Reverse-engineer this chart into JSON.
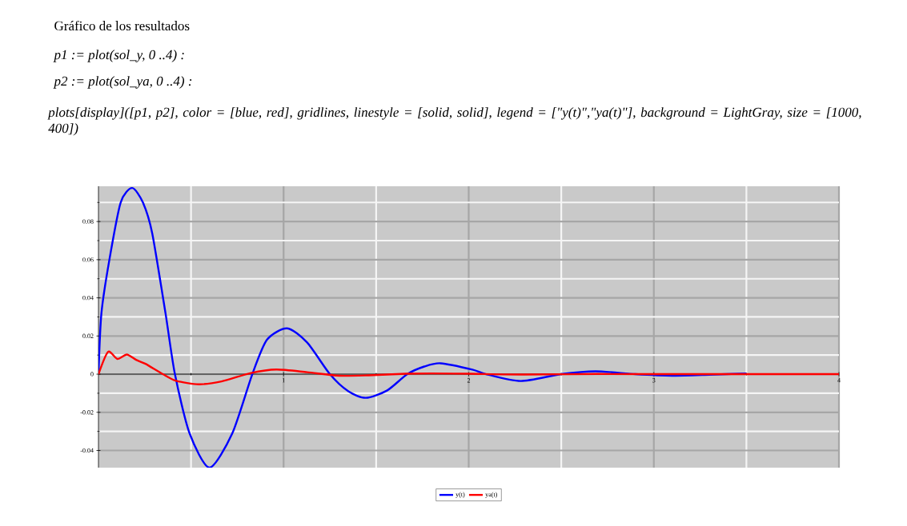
{
  "chart_data": {
    "type": "line",
    "title": "Gráfico de los resultados",
    "annotations": [
      "p1 := plot(sol_y, 0 ..4) :",
      "p2 := plot(sol_ya, 0 ..4) :",
      "plots[display]([p1, p2], color = [blue, red], gridlines, linestyle = [solid, solid], legend = [\"y(t)\",\"ya(t)\"], background = LightGray, size = [1000, 400])"
    ],
    "xlim": [
      0,
      4
    ],
    "ylim": [
      -0.049,
      0.0985
    ],
    "xticks": [
      {
        "value": 0.5,
        "label": null
      },
      1,
      {
        "value": 1.5,
        "label": null
      },
      2,
      {
        "value": 2.5,
        "label": null
      },
      3,
      {
        "value": 3.5,
        "label": null
      },
      4
    ],
    "yticks": [
      {
        "value": -0.04,
        "label": "-0.04"
      },
      {
        "value": -0.03,
        "label": null
      },
      {
        "value": -0.02,
        "label": "-0.02"
      },
      {
        "value": -0.01,
        "label": null
      },
      {
        "value": 0,
        "label": "0"
      },
      {
        "value": 0.01,
        "label": null
      },
      {
        "value": 0.02,
        "label": "0.02"
      },
      {
        "value": 0.03,
        "label": null
      },
      {
        "value": 0.04,
        "label": "0.04"
      },
      {
        "value": 0.05,
        "label": null
      },
      {
        "value": 0.06,
        "label": "0.06"
      },
      {
        "value": 0.07,
        "label": null
      },
      {
        "value": 0.08,
        "label": "0.08"
      },
      {
        "value": 0.09,
        "label": null
      }
    ],
    "grid": true,
    "legend": "bottom",
    "line_style": "solid",
    "marker": "none",
    "series": [
      {
        "name": "y(t)",
        "color": "#0000ff",
        "x": [
          0,
          0.016,
          0.059,
          0.12,
          0.182,
          0.24,
          0.29,
          0.362,
          0.413,
          0.492,
          0.6,
          0.723,
          0.831,
          0.91,
          1.019,
          1.127,
          1.25,
          1.35,
          1.444,
          1.56,
          1.668,
          1.76,
          1.848,
          2.02,
          2.094,
          2.281,
          2.498,
          2.685,
          2.9,
          3.1,
          3.3,
          3.5
        ],
        "values": [
          0,
          0.032,
          0.06,
          0.09,
          0.0976,
          0.09,
          0.074,
          0.032,
          0,
          -0.031,
          -0.049,
          -0.031,
          0,
          0.018,
          0.024,
          0.0166,
          0,
          -0.009,
          -0.0124,
          -0.0085,
          0,
          0.004,
          0.0057,
          0.0024,
          0,
          -0.0036,
          0,
          0.0015,
          0,
          -0.0008,
          -0.0003,
          0.0004
        ]
      },
      {
        "name": "ya(t)",
        "color": "#ff0000",
        "x": [
          0,
          0.052,
          0.102,
          0.153,
          0.203,
          0.254,
          0.348,
          0.42,
          0.542,
          0.665,
          0.824,
          0.961,
          1.127,
          1.3,
          1.46,
          1.66,
          1.8,
          2.0,
          2.3,
          2.7,
          3.2,
          4
        ],
        "values": [
          0,
          0.0117,
          0.008,
          0.0103,
          0.0075,
          0.0054,
          0,
          -0.0035,
          -0.0053,
          -0.0038,
          0.0006,
          0.0024,
          0.001,
          -0.0008,
          -0.0006,
          0.0002,
          0.0004,
          0.0002,
          -0.0002,
          0.0001,
          0,
          0
        ]
      }
    ]
  }
}
